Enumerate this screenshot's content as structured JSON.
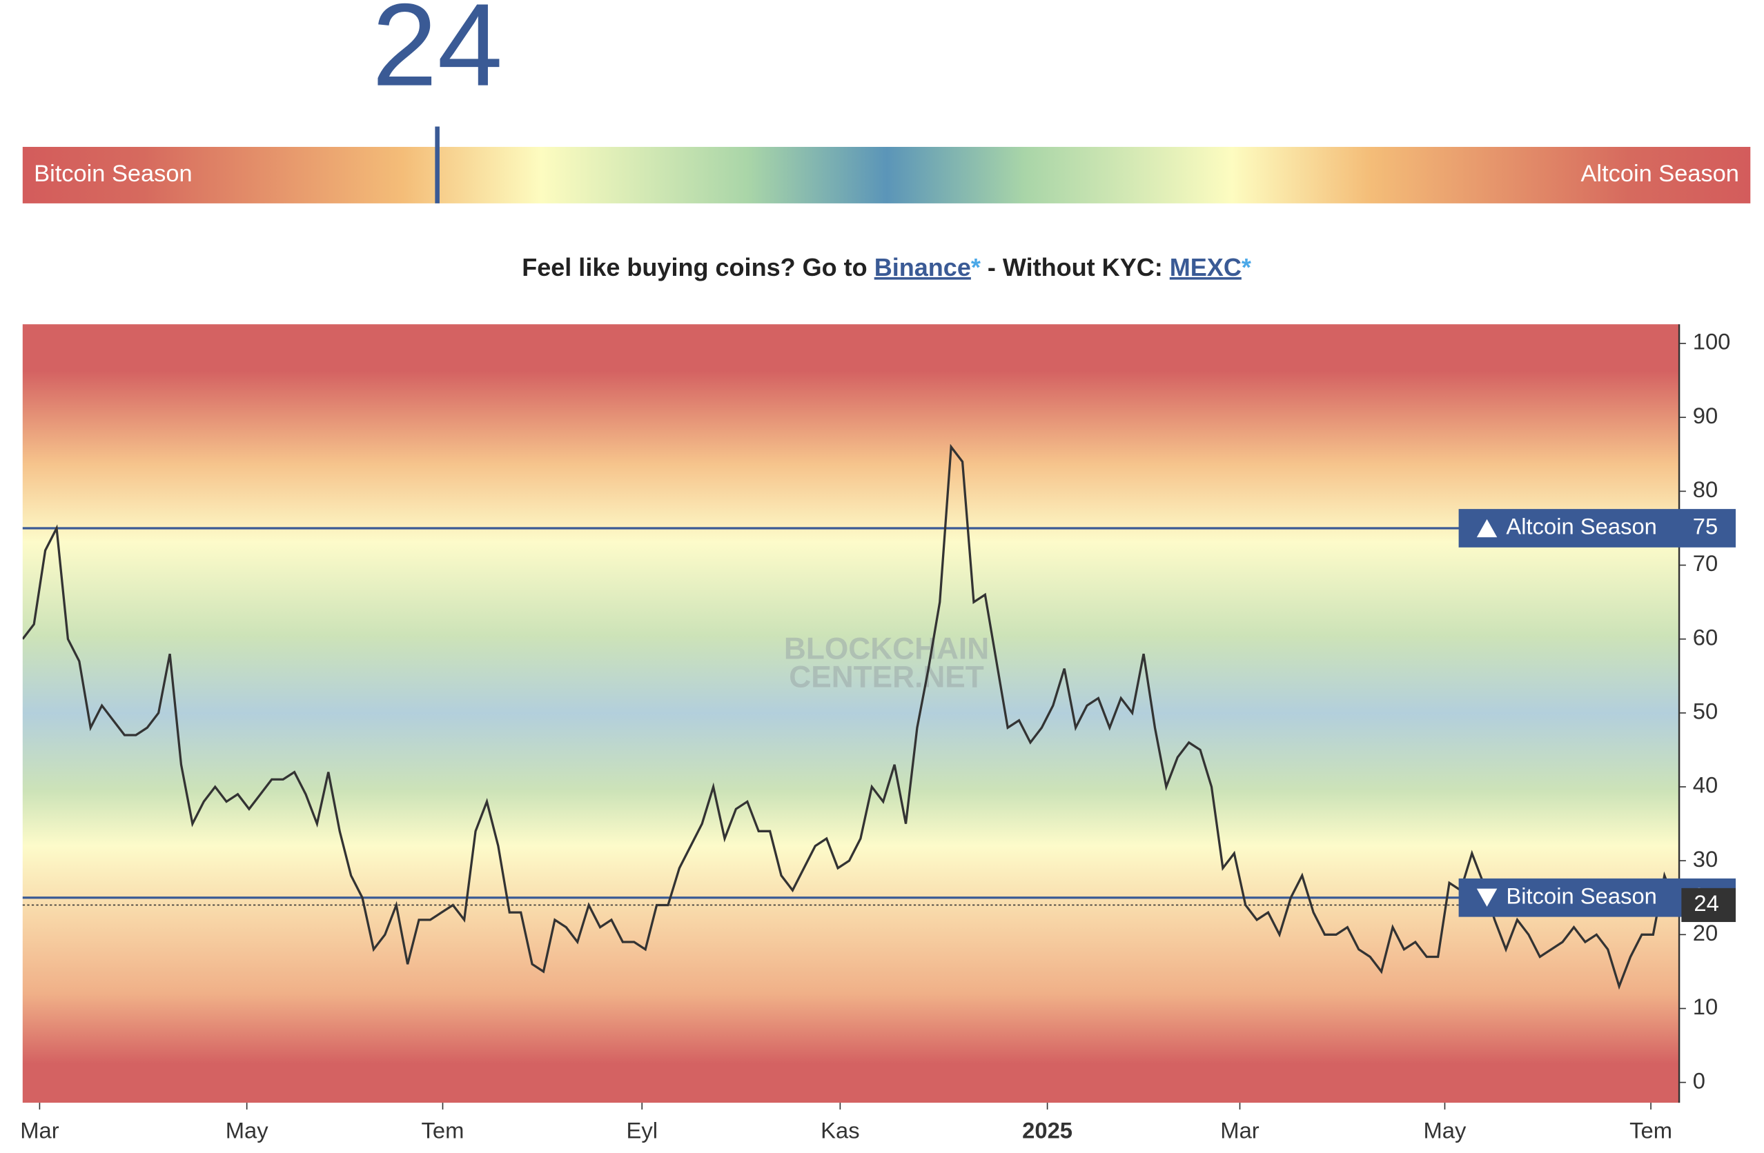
{
  "gauge": {
    "value": 24,
    "range": [
      0,
      100
    ],
    "left_label": "Bitcoin Season",
    "right_label": "Altcoin Season"
  },
  "promo": {
    "text1": "Feel like buying coins? Go to ",
    "link1": "Binance",
    "mark1": "*",
    "text2": " - Without KYC: ",
    "link2": "MEXC",
    "mark2": "*"
  },
  "chart_data": {
    "type": "line",
    "watermark": [
      "BLOCKCHAIN",
      "CENTER.NET"
    ],
    "color": "#333333",
    "values": [
      60,
      62,
      72,
      75,
      60,
      57,
      48,
      51,
      49,
      47,
      47,
      48,
      50,
      58,
      43,
      35,
      38,
      40,
      38,
      39,
      37,
      39,
      41,
      41,
      42,
      39,
      35,
      42,
      34,
      28,
      25,
      18,
      20,
      24,
      16,
      22,
      22,
      23,
      24,
      22,
      34,
      38,
      32,
      23,
      23,
      16,
      15,
      22,
      21,
      19,
      24,
      21,
      22,
      19,
      19,
      18,
      24,
      24,
      29,
      32,
      35,
      40,
      33,
      37,
      38,
      34,
      34,
      28,
      26,
      29,
      32,
      33,
      29,
      30,
      33,
      40,
      38,
      43,
      35,
      48,
      56,
      65,
      86,
      84,
      65,
      66,
      57,
      48,
      49,
      46,
      48,
      51,
      56,
      48,
      51,
      52,
      48,
      52,
      50,
      58,
      48,
      40,
      44,
      46,
      45,
      40,
      29,
      31,
      24,
      22,
      23,
      20,
      25,
      28,
      23,
      20,
      20,
      21,
      18,
      17,
      15,
      21,
      18,
      19,
      17,
      17,
      27,
      26,
      31,
      27,
      22,
      18,
      22,
      20,
      17,
      18,
      19,
      21,
      19,
      20,
      18,
      13,
      17,
      20,
      20,
      28,
      24
    ],
    "xlim": [
      0,
      146
    ],
    "xticks": [
      {
        "value": 1.5,
        "label": "Mar"
      },
      {
        "value": 19.8,
        "label": "May"
      },
      {
        "value": 37.1,
        "label": "Tem"
      },
      {
        "value": 54.7,
        "label": "Eyl"
      },
      {
        "value": 72.2,
        "label": "Kas"
      },
      {
        "value": 90.5,
        "label": "2025"
      },
      {
        "value": 107.5,
        "label": "Mar"
      },
      {
        "value": 125.6,
        "label": "May"
      },
      {
        "value": 143.8,
        "label": "Tem"
      }
    ],
    "ylim": [
      -2.75,
      102.6
    ],
    "yticks": [
      0,
      10,
      20,
      30,
      40,
      50,
      60,
      70,
      80,
      90,
      100
    ],
    "thresholds": [
      {
        "name": "Altcoin Season",
        "value": 75,
        "direction": "up",
        "color": "#3a5a95"
      },
      {
        "name": "Bitcoin Season",
        "value": 25,
        "direction": "down",
        "color": "#3a5a95"
      }
    ],
    "current": 24
  }
}
